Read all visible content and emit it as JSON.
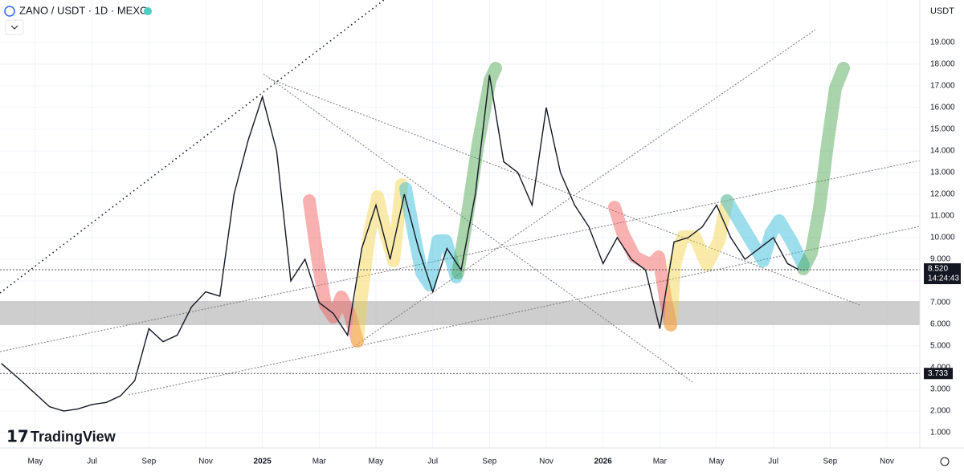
{
  "chart_data": {
    "type": "line",
    "title": "ZANO / USDT · 1D · MEXC",
    "currency": "USDT",
    "brand": "TradingView",
    "color": "#131722",
    "grid": true,
    "xlim": [
      -1.245,
      31.16
    ],
    "ylim": [
      0.3,
      20.96
    ],
    "xticks": [
      {
        "value": 0,
        "label": "May"
      },
      {
        "value": 2,
        "label": "Jul"
      },
      {
        "value": 4,
        "label": "Sep"
      },
      {
        "value": 6,
        "label": "Nov"
      },
      {
        "value": 8,
        "label": "2025"
      },
      {
        "value": 10,
        "label": "Mar"
      },
      {
        "value": 12,
        "label": "May"
      },
      {
        "value": 14,
        "label": "Jul"
      },
      {
        "value": 16,
        "label": "Sep"
      },
      {
        "value": 18,
        "label": "Nov"
      },
      {
        "value": 20,
        "label": "2026"
      },
      {
        "value": 22,
        "label": "Mar"
      },
      {
        "value": 24,
        "label": "May"
      },
      {
        "value": 26,
        "label": "Jul"
      },
      {
        "value": 28,
        "label": "Sep"
      },
      {
        "value": 30,
        "label": "Nov"
      }
    ],
    "yticks": [
      {
        "value": 1,
        "label": "1.000"
      },
      {
        "value": 2,
        "label": "2.000"
      },
      {
        "value": 3,
        "label": "3.000"
      },
      {
        "value": 4,
        "label": "4.000"
      },
      {
        "value": 5,
        "label": "5.000"
      },
      {
        "value": 6,
        "label": "6.000"
      },
      {
        "value": 7,
        "label": "7.000"
      },
      {
        "value": 8,
        "label": "8.000"
      },
      {
        "value": 9,
        "label": "9.000"
      },
      {
        "value": 10,
        "label": "10.000"
      },
      {
        "value": 11,
        "label": "11.000"
      },
      {
        "value": 12,
        "label": "12.000"
      },
      {
        "value": 13,
        "label": "13.000"
      },
      {
        "value": 14,
        "label": "14.000"
      },
      {
        "value": 15,
        "label": "15.000"
      },
      {
        "value": 16,
        "label": "16.000"
      },
      {
        "value": 17,
        "label": "17.000"
      },
      {
        "value": 18,
        "label": "18.000"
      },
      {
        "value": 19,
        "label": "19.000"
      }
    ],
    "x": [
      -1.2,
      -0.5,
      0,
      0.5,
      1,
      1.5,
      2,
      2.5,
      3,
      3.5,
      4,
      4.5,
      5,
      5.5,
      6,
      6.5,
      7,
      7.5,
      8,
      8.5,
      9,
      9.5,
      10,
      10.5,
      11,
      11.5,
      12,
      12.5,
      13,
      13.5,
      14,
      14.5,
      15,
      15.5,
      16,
      16.5,
      17,
      17.5,
      18,
      18.5,
      19,
      19.5,
      20,
      20.5,
      21,
      21.5,
      22,
      22.5,
      23,
      23.5,
      24,
      24.5,
      25,
      25.5,
      26,
      26.5,
      26.9
    ],
    "values": [
      4.2,
      3.4,
      2.8,
      2.2,
      2.0,
      2.1,
      2.3,
      2.4,
      2.7,
      3.4,
      5.8,
      5.2,
      5.5,
      6.8,
      7.5,
      7.3,
      12.0,
      14.5,
      16.5,
      14.0,
      8.0,
      9.0,
      7.0,
      6.5,
      5.5,
      9.5,
      11.5,
      9.0,
      12.0,
      9.5,
      7.5,
      9.5,
      8.5,
      12.0,
      17.5,
      13.5,
      13.0,
      11.5,
      16.0,
      13.0,
      11.5,
      10.5,
      8.8,
      10.0,
      9.0,
      8.5,
      5.8,
      9.8,
      10.0,
      10.5,
      11.5,
      10.0,
      9.0,
      9.5,
      10.0,
      8.8,
      8.52
    ],
    "last_price": {
      "value": 8.52,
      "label": "8.520",
      "countdown": "14:24:43",
      "color": "#131722"
    },
    "level": {
      "value": 3.733,
      "label": "3.733",
      "color": "#131722"
    }
  }
}
